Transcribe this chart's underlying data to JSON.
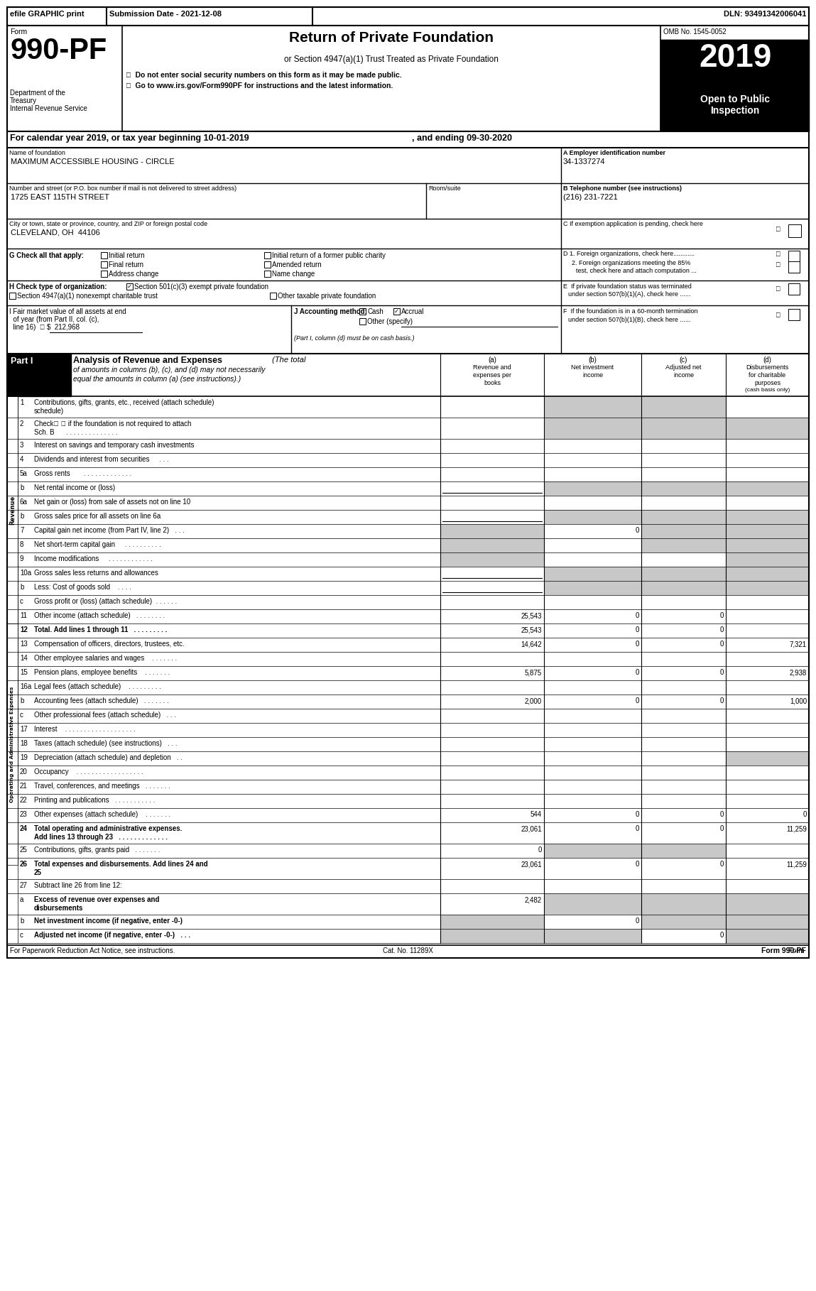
{
  "efile": "efile GRAPHIC print",
  "submission": "Submission Date - 2021-12-08",
  "dln": "DLN: 93491342006041",
  "omb": "OMB No. 1545-0052",
  "year": "2019",
  "title": "Return of Private Foundation",
  "subtitle": "or Section 4947(a)(1) Trust Treated as Private Foundation",
  "bullet1": "▶  Do not enter social security numbers on this form as it may be made public.",
  "bullet2": "▶  Go to www.irs.gov/Form990PF for instructions and the latest information.",
  "cal_year": "For calendar year 2019, or tax year beginning 10-01-2019",
  "ending": ", and ending 09-30-2020",
  "foundation_name": "MAXIMUM ACCESSIBLE HOUSING - CIRCLE",
  "ein": "34-1337274",
  "address": "1725 EAST 115TH STREET",
  "phone": "(216) 231-7221",
  "city": "CLEVELAND, OH  44106",
  "footer_left": "For Paperwork Reduction Act Notice, see instructions.",
  "footer_cat": "Cat. No. 11289X",
  "footer_right": "Form 990-PF (2019)",
  "shaded": "#c8c8c8",
  "white": "#ffffff",
  "black": "#000000",
  "rows": [
    {
      "num": "1",
      "label": "Contributions, gifts, grants, etc., received (attach schedule)",
      "two_line": true,
      "label2": "schedule)",
      "a": "",
      "b": "",
      "c": "",
      "d": "",
      "sa": false,
      "sb": true,
      "sc": true,
      "sd": false
    },
    {
      "num": "2",
      "label": "Check▶ ☑ if the foundation is not required to attach",
      "two_line": true,
      "label2": "Sch. B      . . . . . . . . . . . . . .",
      "a": "",
      "b": "",
      "c": "",
      "d": "",
      "sa": false,
      "sb": true,
      "sc": true,
      "sd": true
    },
    {
      "num": "3",
      "label": "Interest on savings and temporary cash investments",
      "two_line": false,
      "a": "",
      "b": "",
      "c": "",
      "d": "",
      "sa": false,
      "sb": false,
      "sc": false,
      "sd": false
    },
    {
      "num": "4",
      "label": "Dividends and interest from securities     . . .",
      "two_line": false,
      "a": "",
      "b": "",
      "c": "",
      "d": "",
      "sa": false,
      "sb": false,
      "sc": false,
      "sd": false
    },
    {
      "num": "5a",
      "label": "Gross rents       . . . . . . . . . . . . .",
      "two_line": false,
      "a": "",
      "b": "",
      "c": "",
      "d": "",
      "sa": false,
      "sb": false,
      "sc": false,
      "sd": false
    },
    {
      "num": "b",
      "label": "Net rental income or (loss)",
      "two_line": false,
      "underline_a": true,
      "a": "",
      "b": "",
      "c": "",
      "d": "",
      "sa": false,
      "sb": true,
      "sc": true,
      "sd": true
    },
    {
      "num": "6a",
      "label": "Net gain or (loss) from sale of assets not on line 10",
      "two_line": false,
      "a": "",
      "b": "",
      "c": "",
      "d": "",
      "sa": false,
      "sb": false,
      "sc": false,
      "sd": false
    },
    {
      "num": "b",
      "label": "Gross sales price for all assets on line 6a",
      "two_line": false,
      "underline_a": true,
      "a": "",
      "b": "",
      "c": "",
      "d": "",
      "sa": false,
      "sb": true,
      "sc": true,
      "sd": true
    },
    {
      "num": "7",
      "label": "Capital gain net income (from Part IV, line 2)   . . .",
      "two_line": false,
      "a": "",
      "b": "0",
      "c": "",
      "d": "",
      "sa": true,
      "sb": false,
      "sc": true,
      "sd": true
    },
    {
      "num": "8",
      "label": "Net short-term capital gain     . . . . . . . . . .",
      "two_line": false,
      "a": "",
      "b": "",
      "c": "",
      "d": "",
      "sa": true,
      "sb": false,
      "sc": true,
      "sd": true
    },
    {
      "num": "9",
      "label": "Income modifications     . . . . . . . . . . . .",
      "two_line": false,
      "a": "",
      "b": "",
      "c": "",
      "d": "",
      "sa": true,
      "sb": false,
      "sc": false,
      "sd": true
    },
    {
      "num": "10a",
      "label": "Gross sales less returns and allowances",
      "two_line": false,
      "underline_a": true,
      "a": "",
      "b": "",
      "c": "",
      "d": "",
      "sa": false,
      "sb": true,
      "sc": true,
      "sd": true
    },
    {
      "num": "b",
      "label": "Less: Cost of goods sold    . . . .",
      "two_line": false,
      "underline_a": true,
      "a": "",
      "b": "",
      "c": "",
      "d": "",
      "sa": false,
      "sb": true,
      "sc": true,
      "sd": true
    },
    {
      "num": "c",
      "label": "Gross profit or (loss) (attach schedule)  . . . . . .",
      "two_line": false,
      "a": "",
      "b": "",
      "c": "",
      "d": "",
      "sa": false,
      "sb": false,
      "sc": false,
      "sd": false
    },
    {
      "num": "11",
      "label": "Other income (attach schedule)   . . . . . . . .",
      "two_line": false,
      "a": "25,543",
      "b": "0",
      "c": "0",
      "d": "",
      "sa": false,
      "sb": false,
      "sc": false,
      "sd": false
    },
    {
      "num": "12",
      "label": "Total. Add lines 1 through 11   . . . . . . . . .",
      "two_line": false,
      "bold": true,
      "a": "25,543",
      "b": "0",
      "c": "0",
      "d": "",
      "sa": false,
      "sb": false,
      "sc": false,
      "sd": false
    },
    {
      "num": "13",
      "label": "Compensation of officers, directors, trustees, etc.",
      "two_line": false,
      "a": "14,642",
      "b": "0",
      "c": "0",
      "d": "7,321",
      "sa": false,
      "sb": false,
      "sc": false,
      "sd": false
    },
    {
      "num": "14",
      "label": "Other employee salaries and wages    . . . . . . .",
      "two_line": false,
      "a": "",
      "b": "",
      "c": "",
      "d": "",
      "sa": false,
      "sb": false,
      "sc": false,
      "sd": false
    },
    {
      "num": "15",
      "label": "Pension plans, employee benefits    . . . . . . .",
      "two_line": false,
      "a": "5,875",
      "b": "0",
      "c": "0",
      "d": "2,938",
      "sa": false,
      "sb": false,
      "sc": false,
      "sd": false
    },
    {
      "num": "16a",
      "label": "Legal fees (attach schedule)    . . . . . . . . .",
      "two_line": false,
      "a": "",
      "b": "",
      "c": "",
      "d": "",
      "sa": false,
      "sb": false,
      "sc": false,
      "sd": false
    },
    {
      "num": "b",
      "label": "Accounting fees (attach schedule)   . . . . . . .",
      "two_line": false,
      "a": "2,000",
      "b": "0",
      "c": "0",
      "d": "1,000",
      "sa": false,
      "sb": false,
      "sc": false,
      "sd": false
    },
    {
      "num": "c",
      "label": "Other professional fees (attach schedule)   . . .",
      "two_line": false,
      "a": "",
      "b": "",
      "c": "",
      "d": "",
      "sa": false,
      "sb": false,
      "sc": false,
      "sd": false
    },
    {
      "num": "17",
      "label": "Interest    . . . . . . . . . . . . . . . . . . .",
      "two_line": false,
      "a": "",
      "b": "",
      "c": "",
      "d": "",
      "sa": false,
      "sb": false,
      "sc": false,
      "sd": false
    },
    {
      "num": "18",
      "label": "Taxes (attach schedule) (see instructions)   . . .",
      "two_line": false,
      "a": "",
      "b": "",
      "c": "",
      "d": "",
      "sa": false,
      "sb": false,
      "sc": false,
      "sd": false
    },
    {
      "num": "19",
      "label": "Depreciation (attach schedule) and depletion   . .",
      "two_line": false,
      "a": "",
      "b": "",
      "c": "",
      "d": "",
      "sa": false,
      "sb": false,
      "sc": false,
      "sd": true
    },
    {
      "num": "20",
      "label": "Occupancy    . . . . . . . . . . . . . . . . . .",
      "two_line": false,
      "a": "",
      "b": "",
      "c": "",
      "d": "",
      "sa": false,
      "sb": false,
      "sc": false,
      "sd": false
    },
    {
      "num": "21",
      "label": "Travel, conferences, and meetings   . . . . . . .",
      "two_line": false,
      "a": "",
      "b": "",
      "c": "",
      "d": "",
      "sa": false,
      "sb": false,
      "sc": false,
      "sd": false
    },
    {
      "num": "22",
      "label": "Printing and publications   . . . . . . . . . . .",
      "two_line": false,
      "a": "",
      "b": "",
      "c": "",
      "d": "",
      "sa": false,
      "sb": false,
      "sc": false,
      "sd": false
    },
    {
      "num": "23",
      "label": "Other expenses (attach schedule)    . . . . . . .",
      "two_line": false,
      "a": "544",
      "b": "0",
      "c": "0",
      "d": "0",
      "sa": false,
      "sb": false,
      "sc": false,
      "sd": false
    },
    {
      "num": "24",
      "label": "Total operating and administrative expenses.",
      "two_line": true,
      "bold": true,
      "label2": "Add lines 13 through 23   . . . . . . . . . . . . .",
      "a": "23,061",
      "b": "0",
      "c": "0",
      "d": "11,259",
      "sa": false,
      "sb": false,
      "sc": false,
      "sd": false
    },
    {
      "num": "25",
      "label": "Contributions, gifts, grants paid   . . . . . . .",
      "two_line": false,
      "a": "0",
      "b": "",
      "c": "",
      "d": "",
      "sa": false,
      "sb": true,
      "sc": true,
      "sd": false
    },
    {
      "num": "26",
      "label": "Total expenses and disbursements. Add lines 24 and",
      "two_line": true,
      "bold": true,
      "label2": "25",
      "a": "23,061",
      "b": "0",
      "c": "0",
      "d": "11,259",
      "sa": false,
      "sb": false,
      "sc": false,
      "sd": false
    },
    {
      "num": "27",
      "label": "Subtract line 26 from line 12:",
      "two_line": false,
      "a": "",
      "b": "",
      "c": "",
      "d": "",
      "sa": false,
      "sb": false,
      "sc": false,
      "sd": false
    },
    {
      "num": "a",
      "label": "Excess of revenue over expenses and",
      "two_line": true,
      "bold": true,
      "label2": "disbursements",
      "a": "2,482",
      "b": "",
      "c": "",
      "d": "",
      "sa": false,
      "sb": true,
      "sc": true,
      "sd": true
    },
    {
      "num": "b",
      "label": "Net investment income (if negative, enter -0-)",
      "two_line": false,
      "bold": true,
      "a": "",
      "b": "0",
      "c": "",
      "d": "",
      "sa": true,
      "sb": false,
      "sc": true,
      "sd": true
    },
    {
      "num": "c",
      "label": "Adjusted net income (if negative, enter -0-)   . . .",
      "two_line": false,
      "bold": true,
      "a": "",
      "b": "",
      "c": "0",
      "d": "",
      "sa": true,
      "sb": true,
      "sc": false,
      "sd": true
    }
  ]
}
